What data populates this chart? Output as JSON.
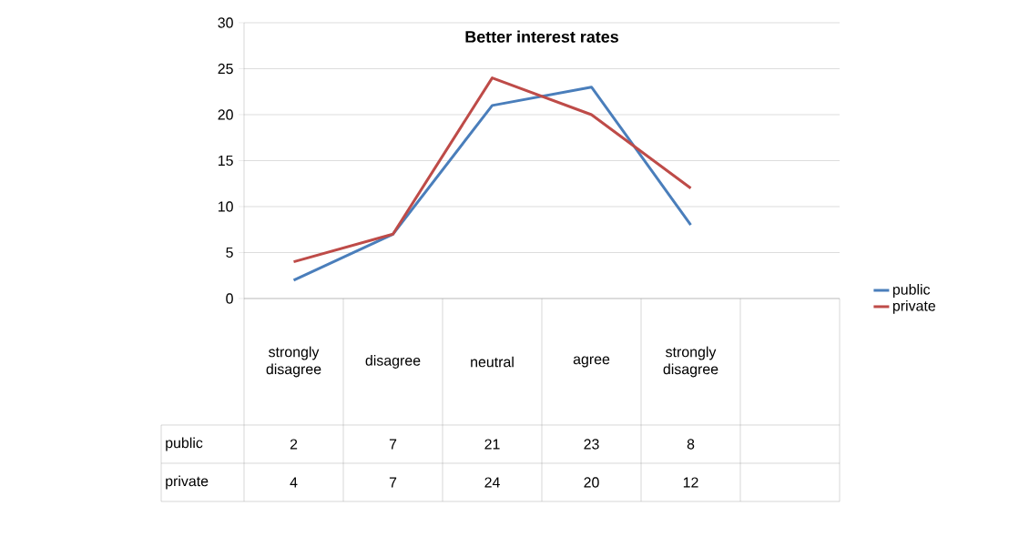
{
  "chart_data": {
    "type": "line",
    "title": "Better interest rates",
    "categories": [
      "strongly disagree",
      "disagree",
      "neutral",
      "agree",
      "strongly disagree",
      null
    ],
    "series": [
      {
        "name": "public",
        "color": "#4a7ebb",
        "values": [
          2,
          7,
          21,
          23,
          8,
          null
        ]
      },
      {
        "name": "private",
        "color": "#be4b48",
        "values": [
          4,
          7,
          24,
          20,
          12,
          null
        ]
      }
    ],
    "ylim": [
      0,
      30
    ],
    "yticks": [
      0,
      5,
      10,
      15,
      20,
      25,
      30
    ],
    "grid": "y",
    "legend": "right",
    "data_labels": true
  }
}
